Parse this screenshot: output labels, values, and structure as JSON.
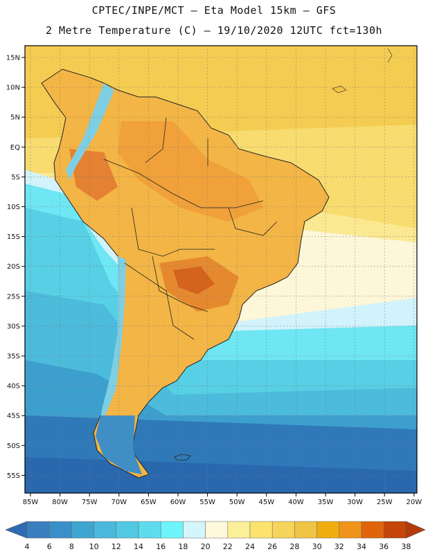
{
  "header": {
    "line1": "CPTEC/INPE/MCT –  Eta Model 15km – GFS",
    "line2": "2 Metre Temperature (C) – 19/10/2020 12UTC fct=130h"
  },
  "map": {
    "lat_labels": [
      "15N",
      "10N",
      "5N",
      "EQ",
      "5S",
      "10S",
      "15S",
      "20S",
      "25S",
      "30S",
      "35S",
      "40S",
      "45S",
      "50S",
      "55S"
    ],
    "lon_labels": [
      "85W",
      "80W",
      "75W",
      "70W",
      "65W",
      "60W",
      "55W",
      "50W",
      "45W",
      "40W",
      "35W",
      "30W",
      "25W",
      "20W"
    ]
  },
  "legend": {
    "labels": [
      "4",
      "6",
      "8",
      "10",
      "12",
      "14",
      "16",
      "18",
      "20",
      "22",
      "24",
      "26",
      "28",
      "30",
      "32",
      "34",
      "36",
      "38"
    ],
    "colors": [
      "#3a7fbf",
      "#3b8fc9",
      "#3fa6d2",
      "#4bb8dc",
      "#52c8e2",
      "#5edced",
      "#6ef5fb",
      "#d2f6fb",
      "#fdf8dc",
      "#fbef98",
      "#fbe36e",
      "#f6d35a",
      "#f0c444",
      "#f0ad10",
      "#ef9418",
      "#e0640a",
      "#c64508"
    ],
    "low_color": "#2d6cb3",
    "high_color": "#b43a07"
  }
}
